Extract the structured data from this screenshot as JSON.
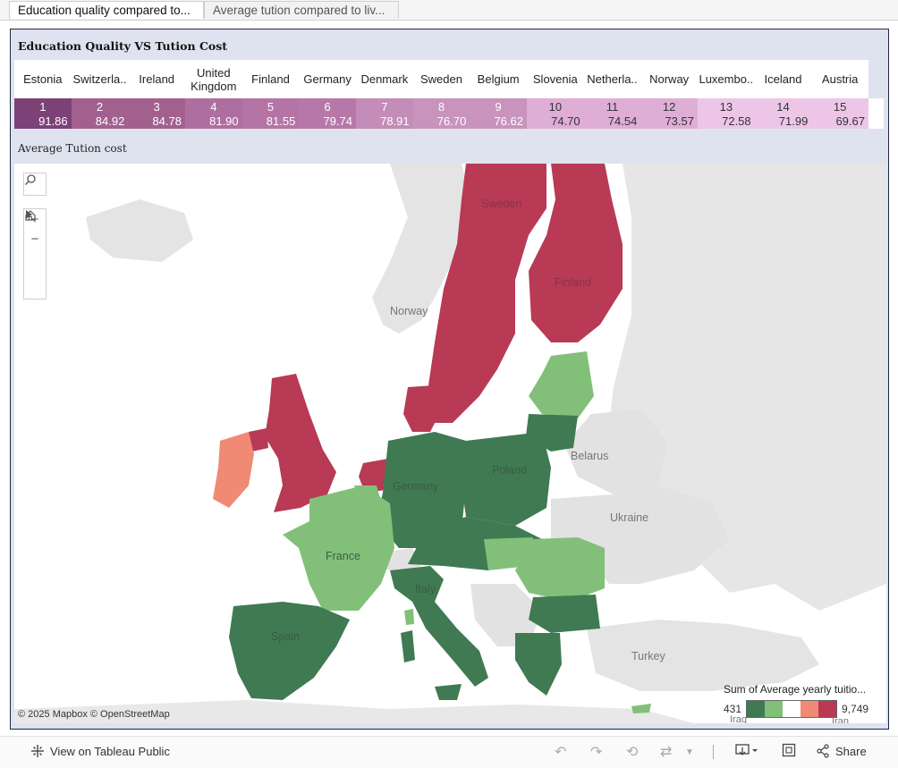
{
  "tabs": [
    {
      "label": "Education quality compared to..."
    },
    {
      "label": "Average tution compared to liv..."
    }
  ],
  "dashboard": {
    "title": "Education Quality VS Tution Cost",
    "map_title": "Average Tution cost"
  },
  "table": {
    "columns": [
      "Estonia",
      "Switzerla..",
      "Ireland",
      "United Kingdom",
      "Finland",
      "Germany",
      "Denmark",
      "Sweden",
      "Belgium",
      "Slovenia",
      "Netherla..",
      "Norway",
      "Luxembo..",
      "Iceland",
      "Austria"
    ],
    "ranks": [
      "1",
      "2",
      "3",
      "4",
      "5",
      "6",
      "7",
      "8",
      "9",
      "10",
      "11",
      "12",
      "13",
      "14",
      "15"
    ],
    "scores": [
      "91.86",
      "84.92",
      "84.78",
      "81.90",
      "81.55",
      "79.74",
      "78.91",
      "76.70",
      "76.62",
      "74.70",
      "74.54",
      "73.57",
      "72.58",
      "71.99",
      "69.67"
    ],
    "colors": [
      "#7c4277",
      "#a2608f",
      "#a2608f",
      "#ae6ea0",
      "#b475a6",
      "#b778a9",
      "#c48cb8",
      "#c893bd",
      "#c893bd",
      "#dfaed6",
      "#dfaed6",
      "#dfaed6",
      "#edc6e7",
      "#edc6e7",
      "#edc6e7"
    ]
  },
  "map": {
    "zoom_in": "+",
    "zoom_out": "−",
    "home_icon": "home-icon",
    "search_icon": "search-icon",
    "play_icon": "play-icon",
    "attribution": "© 2025 Mapbox  © OpenStreetMap",
    "labels": {
      "sweden": "Sweden",
      "finland": "Finland",
      "norway": "Norway",
      "belarus": "Belarus",
      "poland": "Poland",
      "germany": "Germany",
      "ukraine": "Ukraine",
      "france": "France",
      "italy": "Italy",
      "spain": "Spain",
      "turkey": "Turkey",
      "iraq": "Iraq",
      "iran": "Iran"
    },
    "legend": {
      "title": "Sum of Average yearly tuitio...",
      "min": "431",
      "max": "9,749",
      "colors": [
        "#3f7a52",
        "#82c07a",
        "#ffffff",
        "#f08a74",
        "#b83a55"
      ]
    }
  },
  "toolbar": {
    "view_label": "View on Tableau Public",
    "share_label": "Share"
  }
}
